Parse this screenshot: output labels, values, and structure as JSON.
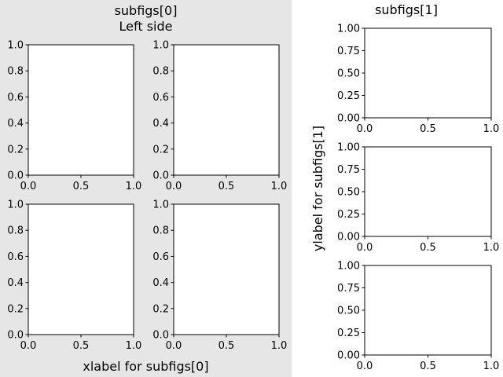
{
  "figure": {
    "left_panel": {
      "title_line1": "subfigs[0]",
      "title_line2": "Left side",
      "xlabel": "xlabel for subfigs[0]",
      "background": "#e6e6e6"
    },
    "right_panel": {
      "title": "subfigs[1]",
      "ylabel": "ylabel for subfigs[1]",
      "background": "#ffffff"
    }
  },
  "chart_data": [
    {
      "type": "line",
      "panel": "subfigs[0]",
      "xlim": [
        0,
        1
      ],
      "ylim": [
        0,
        1
      ],
      "xticks": [
        "0.0",
        "0.5",
        "1.0"
      ],
      "yticks": [
        "0.0",
        "0.2",
        "0.4",
        "0.6",
        "0.8",
        "1.0"
      ],
      "series": [],
      "grid": false
    },
    {
      "type": "line",
      "panel": "subfigs[0]",
      "xlim": [
        0,
        1
      ],
      "ylim": [
        0,
        1
      ],
      "xticks": [
        "0.0",
        "0.5",
        "1.0"
      ],
      "yticks": [
        "0.0",
        "0.2",
        "0.4",
        "0.6",
        "0.8",
        "1.0"
      ],
      "series": [],
      "grid": false
    },
    {
      "type": "line",
      "panel": "subfigs[0]",
      "xlim": [
        0,
        1
      ],
      "ylim": [
        0,
        1
      ],
      "xticks": [
        "0.0",
        "0.5",
        "1.0"
      ],
      "yticks": [
        "0.0",
        "0.2",
        "0.4",
        "0.6",
        "0.8",
        "1.0"
      ],
      "series": [],
      "grid": false
    },
    {
      "type": "line",
      "panel": "subfigs[0]",
      "xlim": [
        0,
        1
      ],
      "ylim": [
        0,
        1
      ],
      "xticks": [
        "0.0",
        "0.5",
        "1.0"
      ],
      "yticks": [
        "0.0",
        "0.2",
        "0.4",
        "0.6",
        "0.8",
        "1.0"
      ],
      "series": [],
      "grid": false
    },
    {
      "type": "line",
      "panel": "subfigs[1]",
      "xlim": [
        0,
        1
      ],
      "ylim": [
        0,
        1
      ],
      "xticks": [
        "0.0",
        "0.5",
        "1.0"
      ],
      "yticks": [
        "0.00",
        "0.25",
        "0.50",
        "0.75",
        "1.00"
      ],
      "series": [],
      "grid": false
    },
    {
      "type": "line",
      "panel": "subfigs[1]",
      "xlim": [
        0,
        1
      ],
      "ylim": [
        0,
        1
      ],
      "xticks": [
        "0.0",
        "0.5",
        "1.0"
      ],
      "yticks": [
        "0.00",
        "0.25",
        "0.50",
        "0.75",
        "1.00"
      ],
      "series": [],
      "grid": false
    },
    {
      "type": "line",
      "panel": "subfigs[1]",
      "xlim": [
        0,
        1
      ],
      "ylim": [
        0,
        1
      ],
      "xticks": [
        "0.0",
        "0.5",
        "1.0"
      ],
      "yticks": [
        "0.00",
        "0.25",
        "0.50",
        "0.75",
        "1.00"
      ],
      "series": [],
      "grid": false
    }
  ]
}
